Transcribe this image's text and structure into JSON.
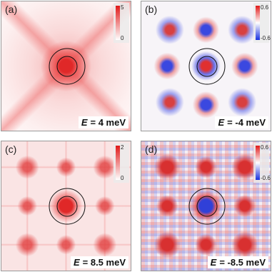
{
  "panels": [
    {
      "label": "(a)",
      "colorbar": {
        "ticks": [
          5,
          0
        ]
      },
      "energy": {
        "symbol": "E",
        "text": "= 4 meV"
      }
    },
    {
      "label": "(b)",
      "colorbar": {
        "ticks": [
          0.6,
          -0.6
        ]
      },
      "energy": {
        "symbol": "E",
        "text": "= -4 meV"
      }
    },
    {
      "label": "(c)",
      "colorbar": {
        "ticks": [
          2,
          0
        ]
      },
      "energy": {
        "symbol": "E",
        "text": "= 8.5 meV"
      }
    },
    {
      "label": "(d)",
      "colorbar": {
        "ticks": [
          0.6,
          -0.6
        ]
      },
      "energy": {
        "symbol": "E",
        "text": "= -8.5 meV"
      }
    }
  ]
}
